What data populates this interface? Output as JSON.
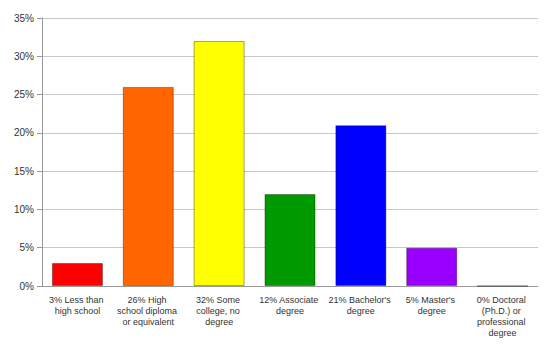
{
  "chart_data": {
    "type": "bar",
    "categories": [
      "3% Less than high school",
      "26% High school diploma or equivalent",
      "32% Some college, no degree",
      "12% Associate degree",
      "21% Bachelor's degree",
      "5% Master's degree",
      "0% Doctoral (Ph.D.) or professional degree"
    ],
    "values": [
      3,
      26,
      32,
      12,
      21,
      5,
      0
    ],
    "colors": [
      "#ff0000",
      "#ff6600",
      "#ffff00",
      "#009900",
      "#0000ff",
      "#9900ff",
      "#ff00ff"
    ],
    "ylim": [
      0,
      35
    ],
    "yticks": [
      {
        "value": 0,
        "label": "0%"
      },
      {
        "value": 5,
        "label": "5%"
      },
      {
        "value": 10,
        "label": "10%"
      },
      {
        "value": 15,
        "label": "15%"
      },
      {
        "value": 20,
        "label": "20%"
      },
      {
        "value": 25,
        "label": "25%"
      },
      {
        "value": 30,
        "label": "30%"
      },
      {
        "value": 35,
        "label": "35%"
      }
    ],
    "grid": true
  }
}
